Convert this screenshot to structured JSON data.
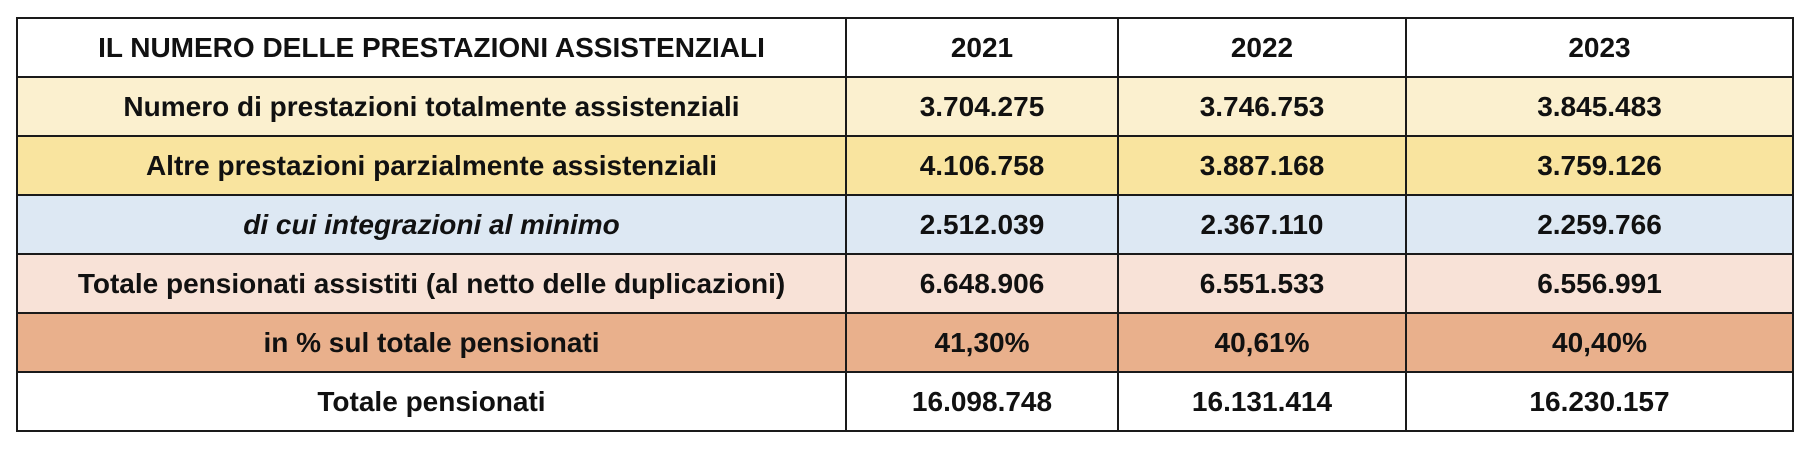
{
  "table": {
    "header": {
      "title": "IL NUMERO DELLE PRESTAZIONI ASSISTENZIALI",
      "years": [
        "2021",
        "2022",
        "2023"
      ]
    },
    "rows": [
      {
        "label": "Numero di prestazioni totalmente assistenziali",
        "values": [
          "3.704.275",
          "3.746.753",
          "3.845.483"
        ],
        "bg": "#fbf0cf",
        "italic": false
      },
      {
        "label": "Altre prestazioni parzialmente assistenziali",
        "values": [
          "4.106.758",
          "3.887.168",
          "3.759.126"
        ],
        "bg": "#f9e49f",
        "italic": false
      },
      {
        "label": "di cui integrazioni al minimo",
        "values": [
          "2.512.039",
          "2.367.110",
          "2.259.766"
        ],
        "bg": "#dde8f3",
        "italic": true
      },
      {
        "label": "Totale pensionati assistiti (al netto delle duplicazioni)",
        "values": [
          "6.648.906",
          "6.551.533",
          "6.556.991"
        ],
        "bg": "#f8e2d7",
        "italic": false
      },
      {
        "label": "in % sul totale pensionati",
        "values": [
          "41,30%",
          "40,61%",
          "40,40%"
        ],
        "bg": "#e9b08c",
        "italic": false
      },
      {
        "label": "Totale pensionati",
        "values": [
          "16.098.748",
          "16.131.414",
          "16.230.157"
        ],
        "bg": "#ffffff",
        "italic": false
      }
    ]
  }
}
